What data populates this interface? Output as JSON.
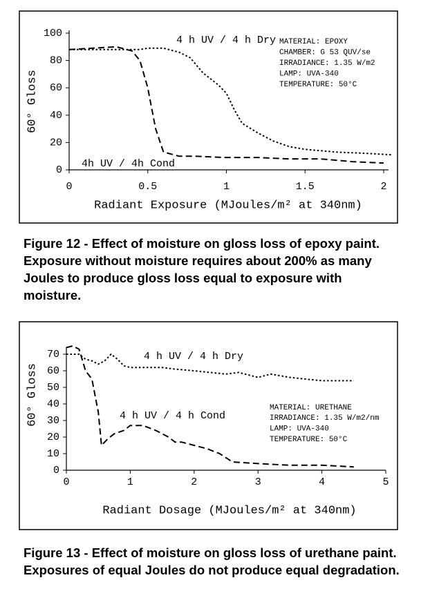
{
  "chart_data": [
    {
      "type": "line",
      "xlabel": "Radiant Exposure (MJoules/m² at 340nm)",
      "ylabel": "60° Gloss",
      "caption": "Figure 12 - Effect of moisture on gloss loss of epoxy paint. Exposure without moisture requires about 200% as many Joules to produce gloss loss equal to exposure with moisture.",
      "info": [
        "MATERIAL:  EPOXY",
        "CHAMBER:  G 53  QUV/se",
        "IRRADIANCE: 1.35 W/m2",
        "LAMP: UVA-340",
        "TEMPERATURE:  50°C"
      ],
      "xlim": [
        0,
        2
      ],
      "xticks": [
        0,
        0.5,
        1,
        1.5,
        2
      ],
      "ylim": [
        0,
        100
      ],
      "yticks": [
        0,
        20,
        40,
        60,
        80,
        100
      ],
      "series": [
        {
          "name": "4 h UV / 4 h Dry",
          "color": "#000000",
          "dash": "dotted",
          "x": [
            0,
            0.2,
            0.45,
            0.5,
            0.6,
            0.7,
            0.77,
            0.85,
            0.95,
            1.0,
            1.05,
            1.1,
            1.2,
            1.3,
            1.4,
            1.5,
            1.7,
            1.9,
            2.05
          ],
          "values": [
            88,
            88,
            88,
            89,
            89,
            86,
            82,
            71,
            62,
            56,
            44,
            34,
            27,
            21,
            17,
            15,
            13,
            12,
            11
          ]
        },
        {
          "name": "4h UV / 4h Cond",
          "color": "#000000",
          "dash": "dashed",
          "x": [
            0,
            0.15,
            0.3,
            0.4,
            0.45,
            0.5,
            0.55,
            0.6,
            0.7,
            0.8,
            1.0,
            1.2,
            1.4,
            1.6,
            1.8,
            2.0
          ],
          "values": [
            88,
            89,
            90,
            87,
            80,
            60,
            30,
            13,
            10,
            10,
            9,
            9,
            8,
            8,
            6,
            5
          ]
        }
      ]
    },
    {
      "type": "line",
      "xlabel": "Radiant Dosage (MJoules/m² at 340nm)",
      "ylabel": "60° Gloss",
      "caption": "Figure 13 - Effect of moisture on gloss loss of urethane paint. Exposures of equal Joules do not produce equal degradation.",
      "info": [
        "MATERIAL: URETHANE",
        "IRRADIANCE: 1.35 W/m2/nm",
        "LAMP: UVA-340",
        "TEMPERATURE: 50°C"
      ],
      "xlim": [
        0,
        5
      ],
      "xticks": [
        0,
        1,
        2,
        3,
        4,
        5
      ],
      "ylim": [
        0,
        75
      ],
      "yticks": [
        0,
        10,
        20,
        30,
        40,
        50,
        60,
        70
      ],
      "series": [
        {
          "name": "4 h UV / 4 h Dry",
          "color": "#000000",
          "dash": "dotted",
          "x": [
            0,
            0.2,
            0.3,
            0.4,
            0.5,
            0.6,
            0.7,
            0.8,
            0.9,
            1.0,
            1.5,
            1.7,
            2.0,
            2.5,
            2.7,
            3.0,
            3.2,
            3.5,
            4.0,
            4.5
          ],
          "values": [
            70,
            70,
            67,
            66,
            64,
            66,
            70,
            67,
            63,
            62,
            62,
            61,
            60,
            58,
            59,
            56,
            58,
            56,
            54,
            54
          ]
        },
        {
          "name": "4 h UV / 4 h Cond",
          "color": "#000000",
          "dash": "dashed",
          "x": [
            0,
            0.1,
            0.2,
            0.3,
            0.4,
            0.5,
            0.55,
            0.65,
            0.75,
            0.9,
            1.0,
            1.2,
            1.4,
            1.6,
            1.7,
            1.8,
            2.0,
            2.2,
            2.4,
            2.6,
            3.0,
            3.5,
            4.0,
            4.5
          ],
          "values": [
            74,
            75,
            73,
            60,
            55,
            35,
            15,
            19,
            22,
            24,
            27,
            27,
            24,
            20,
            17,
            17,
            15,
            13,
            10,
            5,
            4,
            3,
            3,
            2
          ]
        }
      ]
    }
  ]
}
